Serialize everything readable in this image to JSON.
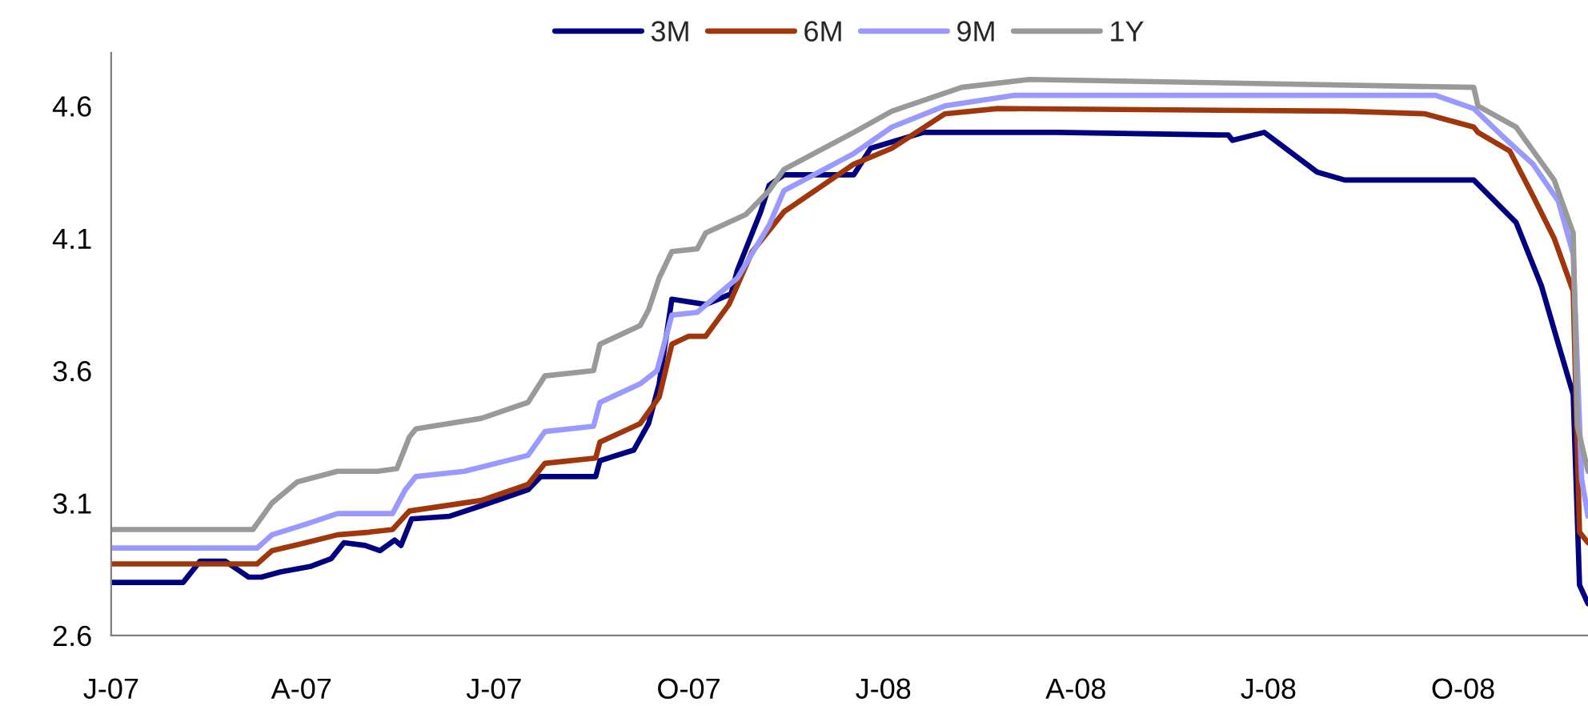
{
  "chart_data": {
    "type": "line",
    "xlim": [
      "2007-01-01",
      "2008-11-29"
    ],
    "xticks": [
      {
        "value": "2007-01-01",
        "label": "J-07"
      },
      {
        "value": "2007-04-01",
        "label": "A-07"
      },
      {
        "value": "2007-07-01",
        "label": "J-07"
      },
      {
        "value": "2007-10-01",
        "label": "O-07"
      },
      {
        "value": "2008-01-01",
        "label": "J-08"
      },
      {
        "value": "2008-04-01",
        "label": "A-08"
      },
      {
        "value": "2008-07-01",
        "label": "J-08"
      },
      {
        "value": "2008-10-01",
        "label": "O-08"
      }
    ],
    "ylim": [
      2.6,
      4.8
    ],
    "yticks": [
      2.6,
      3.1,
      3.6,
      4.1,
      4.6
    ],
    "grid": false,
    "legend": "top",
    "marker": "none",
    "line_style": "solid",
    "series": [
      {
        "name": "3M",
        "color": "#000080",
        "x": [
          "2007-01-01",
          "2007-02-04",
          "2007-02-12",
          "2007-02-24",
          "2007-03-07",
          "2007-03-13",
          "2007-03-22",
          "2007-04-05",
          "2007-04-15",
          "2007-04-21",
          "2007-05-01",
          "2007-05-08",
          "2007-05-15",
          "2007-05-18",
          "2007-05-23",
          "2007-06-10",
          "2007-06-25",
          "2007-07-17",
          "2007-07-23",
          "2007-08-18",
          "2007-08-20",
          "2007-09-05",
          "2007-09-12",
          "2007-09-17",
          "2007-09-23",
          "2007-10-09",
          "2007-10-21",
          "2007-10-24",
          "2007-11-04",
          "2007-11-08",
          "2007-11-15",
          "2007-12-18",
          "2007-12-26",
          "2008-01-20",
          "2008-03-23",
          "2008-06-12",
          "2008-06-14",
          "2008-06-29",
          "2008-07-24",
          "2008-08-06",
          "2008-10-06",
          "2008-10-26",
          "2008-11-07",
          "2008-11-15",
          "2008-11-22",
          "2008-11-25",
          "2008-11-29"
        ],
        "values": [
          2.8,
          2.8,
          2.88,
          2.88,
          2.82,
          2.82,
          2.84,
          2.86,
          2.89,
          2.95,
          2.94,
          2.92,
          2.96,
          2.94,
          3.04,
          3.05,
          3.09,
          3.15,
          3.2,
          3.2,
          3.26,
          3.3,
          3.4,
          3.55,
          3.87,
          3.85,
          3.89,
          3.98,
          4.2,
          4.3,
          4.34,
          4.34,
          4.44,
          4.5,
          4.5,
          4.49,
          4.47,
          4.5,
          4.35,
          4.32,
          4.32,
          4.16,
          3.92,
          3.7,
          3.51,
          2.79,
          2.72
        ]
      },
      {
        "name": "6M",
        "color": "#a0360b",
        "x": [
          "2007-01-01",
          "2007-03-11",
          "2007-03-18",
          "2007-04-03",
          "2007-04-18",
          "2007-05-03",
          "2007-05-14",
          "2007-05-22",
          "2007-06-25",
          "2007-07-17",
          "2007-07-25",
          "2007-08-18",
          "2007-08-20",
          "2007-09-08",
          "2007-09-17",
          "2007-09-23",
          "2007-10-01",
          "2007-10-09",
          "2007-10-20",
          "2007-10-31",
          "2007-11-15",
          "2007-12-18",
          "2008-01-05",
          "2008-01-30",
          "2008-02-24",
          "2008-08-06",
          "2008-09-13",
          "2008-10-06",
          "2008-10-08",
          "2008-10-23",
          "2008-11-03",
          "2008-11-13",
          "2008-11-22",
          "2008-11-25",
          "2008-11-29"
        ],
        "values": [
          2.87,
          2.87,
          2.92,
          2.95,
          2.98,
          2.99,
          3.0,
          3.07,
          3.11,
          3.17,
          3.25,
          3.27,
          3.33,
          3.4,
          3.5,
          3.7,
          3.73,
          3.73,
          3.85,
          4.05,
          4.2,
          4.38,
          4.44,
          4.57,
          4.59,
          4.58,
          4.57,
          4.52,
          4.5,
          4.43,
          4.26,
          4.1,
          3.9,
          2.99,
          2.95
        ]
      },
      {
        "name": "9M",
        "color": "#9999ff",
        "x": [
          "2007-01-01",
          "2007-03-11",
          "2007-03-18",
          "2007-04-03",
          "2007-04-18",
          "2007-05-14",
          "2007-05-20",
          "2007-05-25",
          "2007-06-17",
          "2007-07-17",
          "2007-07-25",
          "2007-08-17",
          "2007-08-20",
          "2007-09-08",
          "2007-09-16",
          "2007-09-20",
          "2007-09-23",
          "2007-10-05",
          "2007-10-24",
          "2007-11-08",
          "2007-11-15",
          "2007-12-18",
          "2008-01-05",
          "2008-01-30",
          "2008-03-03",
          "2008-09-18",
          "2008-10-06",
          "2008-10-19",
          "2008-11-03",
          "2008-11-15",
          "2008-11-22",
          "2008-11-26",
          "2008-11-29"
        ],
        "values": [
          2.93,
          2.93,
          2.98,
          3.02,
          3.06,
          3.06,
          3.15,
          3.2,
          3.22,
          3.28,
          3.37,
          3.39,
          3.48,
          3.55,
          3.6,
          3.72,
          3.81,
          3.82,
          3.95,
          4.15,
          4.28,
          4.42,
          4.52,
          4.6,
          4.64,
          4.64,
          4.59,
          4.49,
          4.38,
          4.24,
          4.04,
          3.19,
          3.05
        ]
      },
      {
        "name": "1Y",
        "color": "#999999",
        "x": [
          "2007-01-01",
          "2007-03-09",
          "2007-03-18",
          "2007-03-30",
          "2007-04-18",
          "2007-05-07",
          "2007-05-16",
          "2007-05-22",
          "2007-05-25",
          "2007-06-25",
          "2007-07-17",
          "2007-07-25",
          "2007-08-17",
          "2007-08-20",
          "2007-09-08",
          "2007-09-12",
          "2007-09-17",
          "2007-09-23",
          "2007-10-05",
          "2007-10-09",
          "2007-10-28",
          "2007-11-08",
          "2007-11-15",
          "2007-12-18",
          "2008-01-05",
          "2008-02-07",
          "2008-03-10",
          "2008-10-06",
          "2008-10-08",
          "2008-10-26",
          "2008-11-13",
          "2008-11-22",
          "2008-11-24",
          "2008-11-29"
        ],
        "values": [
          3.0,
          3.0,
          3.1,
          3.18,
          3.22,
          3.22,
          3.23,
          3.35,
          3.38,
          3.42,
          3.48,
          3.58,
          3.6,
          3.7,
          3.77,
          3.83,
          3.95,
          4.05,
          4.06,
          4.12,
          4.19,
          4.28,
          4.36,
          4.5,
          4.58,
          4.67,
          4.7,
          4.67,
          4.6,
          4.52,
          4.32,
          4.12,
          3.39,
          3.22
        ]
      }
    ]
  }
}
